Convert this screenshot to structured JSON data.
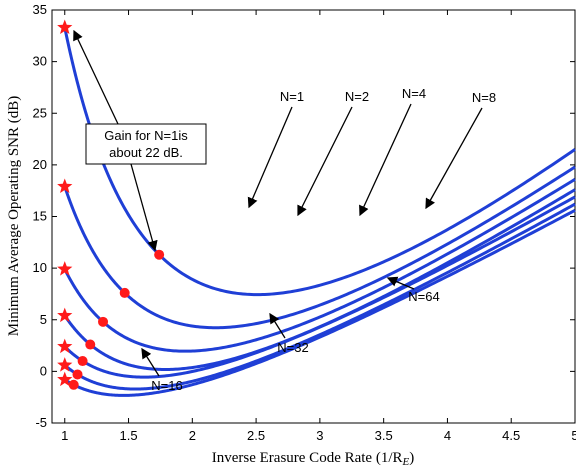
{
  "chart_data": {
    "type": "line",
    "title": "",
    "xlabel": "Inverse Erasure Code Rate (1/R",
    "xlabel_sub": "E",
    "xlabel_close": ")",
    "ylabel": "Minimum Average Operating SNR (dB)",
    "xlim": [
      0.9,
      5
    ],
    "ylim": [
      -5,
      35
    ],
    "xticks": [
      1,
      1.5,
      2,
      2.5,
      3,
      3.5,
      4,
      4.5,
      5
    ],
    "yticks": [
      -5,
      0,
      5,
      10,
      15,
      20,
      25,
      30,
      35
    ],
    "grid": false,
    "legend": "none",
    "line_color": "#1f3fd6",
    "marker_color": "#ff1a1a",
    "series": [
      {
        "label": "N=1",
        "N": 1,
        "start_y": 33.3,
        "min": [
          1.74,
          11.3
        ],
        "end_y": 21.5
      },
      {
        "label": "N=2",
        "N": 2,
        "start_y": 17.9,
        "min": [
          1.47,
          7.6
        ],
        "end_y": 19.8
      },
      {
        "label": "N=4",
        "N": 4,
        "start_y": 9.9,
        "min": [
          1.3,
          4.8
        ],
        "end_y": 18.6
      },
      {
        "label": "N=8",
        "N": 8,
        "start_y": 5.4,
        "min": [
          1.2,
          2.6
        ],
        "end_y": 17.6
      },
      {
        "label": "N=16",
        "N": 16,
        "start_y": 2.4,
        "min": [
          1.14,
          1.0
        ],
        "end_y": 16.9
      },
      {
        "label": "N=32",
        "N": 32,
        "start_y": 0.6,
        "min": [
          1.1,
          -0.3
        ],
        "end_y": 16.2
      },
      {
        "label": "N=64",
        "N": 64,
        "start_y": -0.8,
        "min": [
          1.07,
          -1.3
        ],
        "end_y": 15.6
      }
    ],
    "annotations": [
      {
        "name": "gain-note",
        "text": "Gain for N=1is",
        "text2": "about 22 dB."
      },
      {
        "name": "label-n1",
        "text": "N=1"
      },
      {
        "name": "label-n2",
        "text": "N=2"
      },
      {
        "name": "label-n4",
        "text": "N=4"
      },
      {
        "name": "label-n8",
        "text": "N=8"
      },
      {
        "name": "label-n16",
        "text": "N=16"
      },
      {
        "name": "label-n32",
        "text": "N=32"
      },
      {
        "name": "label-n64",
        "text": "N=64"
      }
    ]
  }
}
